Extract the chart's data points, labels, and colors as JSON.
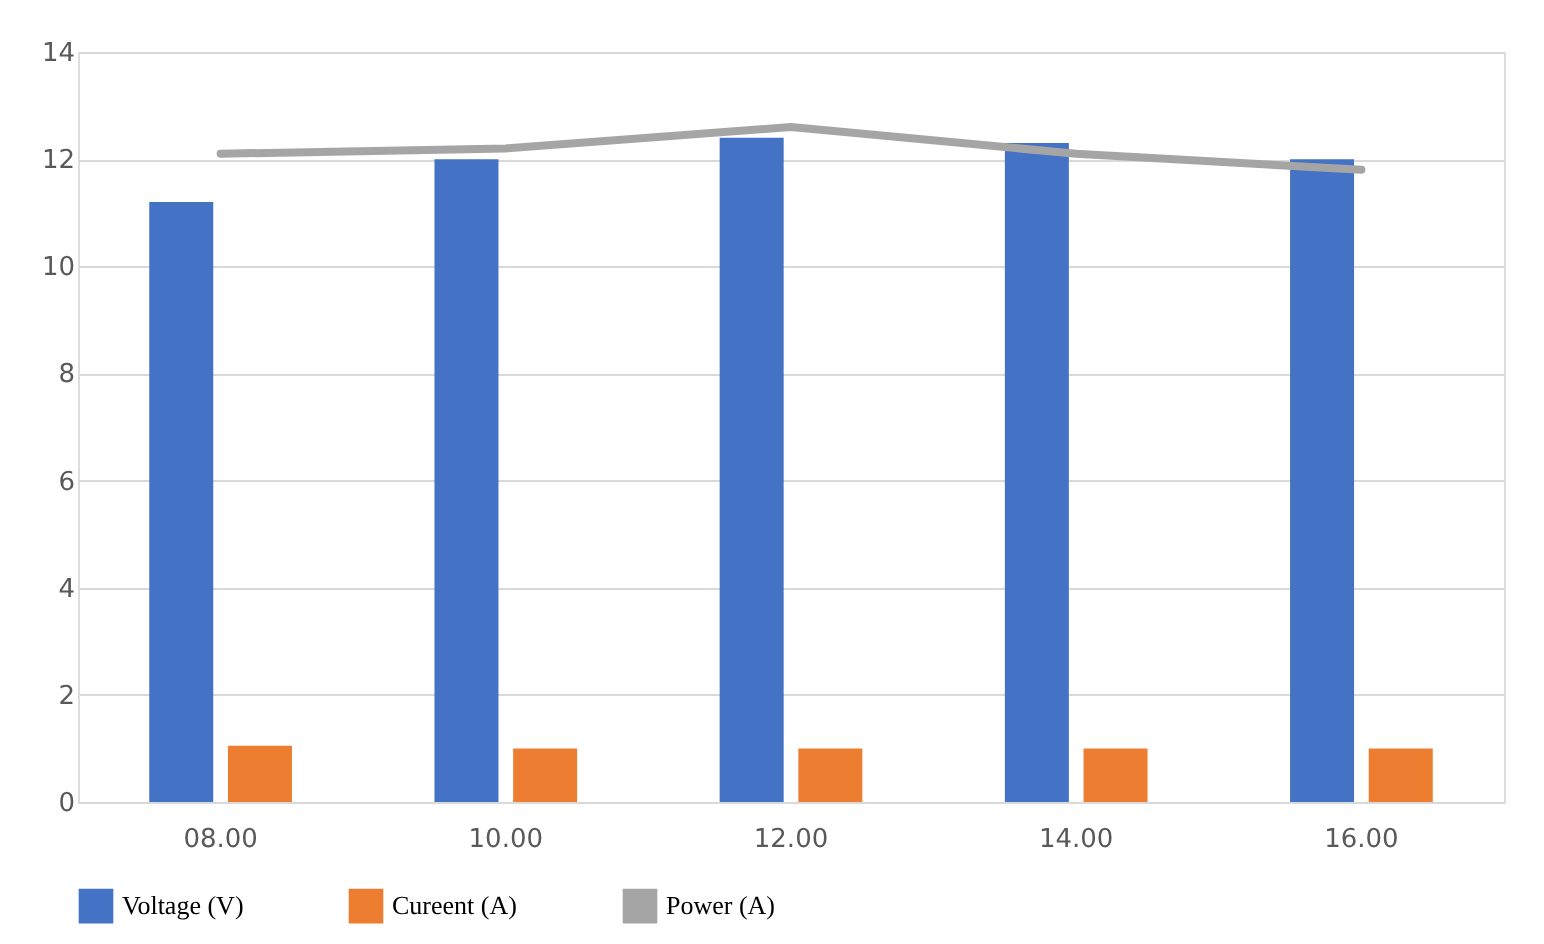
{
  "chart_data": {
    "type": "bar",
    "categories": [
      "08.00",
      "10.00",
      "12.00",
      "14.00",
      "16.00"
    ],
    "series": [
      {
        "name": "Voltage (V)",
        "color": "#4472c4",
        "values": [
          11.2,
          12.0,
          12.4,
          12.3,
          12.0
        ]
      },
      {
        "name": "Cureent (A)",
        "color": "#ed7d31",
        "values": [
          1.05,
          1.0,
          1.0,
          1.0,
          1.0
        ]
      },
      {
        "name": "Power (A)",
        "color": "#a5a5a5",
        "type": "line",
        "values": [
          12.1,
          12.2,
          12.6,
          12.1,
          11.8
        ]
      }
    ],
    "ylim": [
      0,
      14
    ],
    "yticks": [
      0,
      2,
      4,
      6,
      8,
      10,
      12,
      14
    ],
    "grid": "y",
    "legend": "bottom"
  }
}
